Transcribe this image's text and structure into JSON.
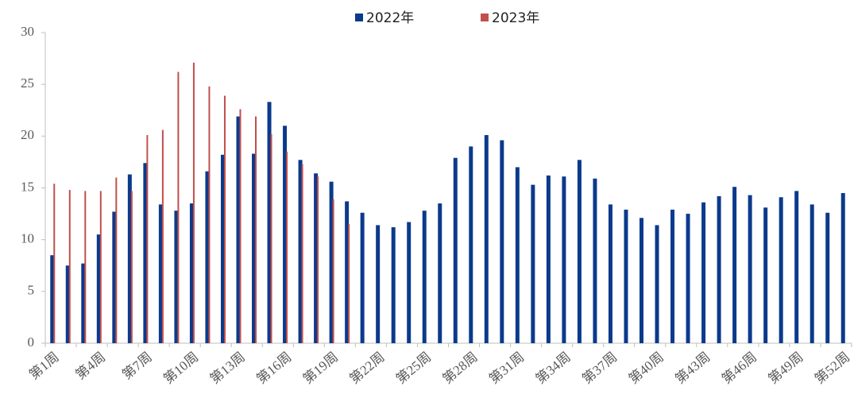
{
  "chart_data": {
    "type": "bar",
    "categories": [
      "第1周",
      null,
      null,
      "第4周",
      null,
      null,
      "第7周",
      null,
      null,
      "第10周",
      null,
      null,
      "第13周",
      null,
      null,
      "第16周",
      null,
      null,
      "第19周",
      null,
      null,
      "第22周",
      null,
      null,
      "第25周",
      null,
      null,
      "第28周",
      null,
      null,
      "第31周",
      null,
      null,
      "第34周",
      null,
      null,
      "第37周",
      null,
      null,
      "第40周",
      null,
      null,
      "第43周",
      null,
      null,
      "第46周",
      null,
      null,
      "第49周",
      null,
      null,
      "第52周"
    ],
    "series": [
      {
        "name": "2022年",
        "color": "#0b3a8c",
        "values": [
          8.5,
          7.5,
          7.7,
          10.5,
          12.7,
          16.3,
          17.4,
          13.4,
          12.8,
          13.5,
          16.6,
          18.2,
          21.9,
          18.3,
          23.3,
          21.0,
          17.7,
          16.4,
          15.6,
          13.7,
          12.6,
          11.4,
          11.2,
          11.7,
          12.8,
          13.5,
          17.9,
          19.0,
          20.1,
          19.6,
          17.0,
          15.3,
          16.2,
          16.1,
          17.7,
          15.9,
          13.4,
          12.9,
          12.1,
          11.4,
          12.9,
          12.5,
          13.6,
          14.2,
          15.1,
          14.3,
          13.1,
          14.1,
          14.7,
          13.4,
          12.6,
          14.5
        ]
      },
      {
        "name": "2023年",
        "color": "#c0504d",
        "values": [
          15.4,
          14.8,
          14.7,
          14.7,
          16.0,
          14.7,
          20.1,
          20.6,
          26.2,
          27.1,
          24.8,
          23.9,
          22.6,
          21.9,
          20.2,
          18.5,
          17.3,
          16.1,
          13.9,
          11.5,
          null,
          null,
          null,
          null,
          null,
          null,
          null,
          null,
          null,
          null,
          null,
          null,
          null,
          null,
          null,
          null,
          null,
          null,
          null,
          null,
          null,
          null,
          null,
          null,
          null,
          null,
          null,
          null,
          null,
          null,
          null,
          null
        ]
      }
    ],
    "ylim": [
      0,
      30
    ],
    "yticks": [
      0,
      5,
      10,
      15,
      20,
      25,
      30
    ],
    "legend": "top"
  }
}
